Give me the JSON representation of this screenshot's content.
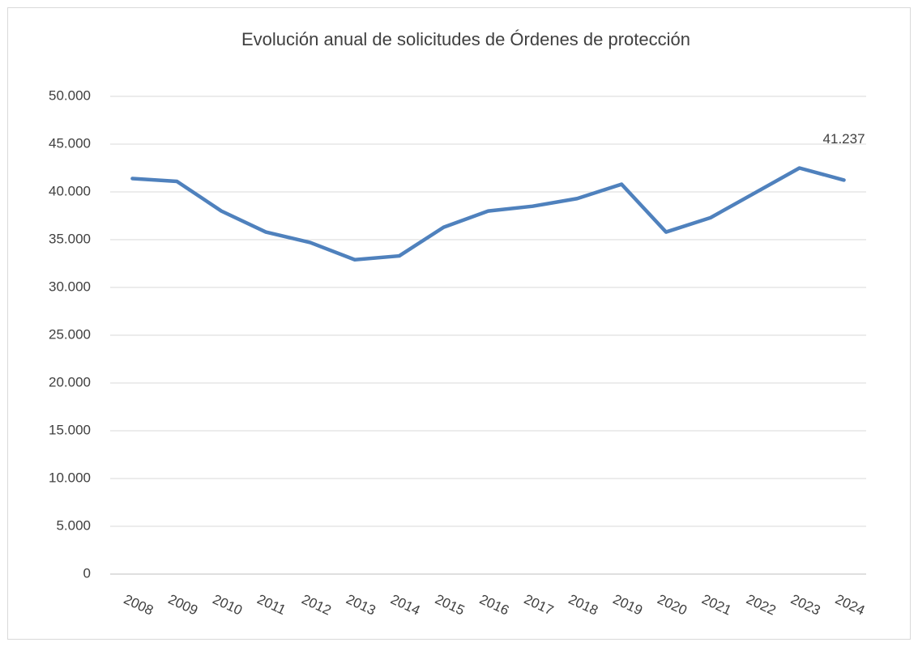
{
  "chart_data": {
    "type": "line",
    "title": "Evolución anual de solicitudes de Órdenes de protección",
    "categories": [
      "2008",
      "2009",
      "2010",
      "2011",
      "2012",
      "2013",
      "2014",
      "2015",
      "2016",
      "2017",
      "2018",
      "2019",
      "2020",
      "2021",
      "2022",
      "2023",
      "2024"
    ],
    "series": [
      {
        "name": "Solicitudes",
        "color": "#4f81bd",
        "values": [
          41400,
          41100,
          38000,
          35800,
          34700,
          32900,
          33300,
          36300,
          38000,
          38500,
          39300,
          40800,
          35800,
          37300,
          39900,
          42500,
          41237
        ],
        "value_labels": [
          null,
          null,
          null,
          null,
          null,
          null,
          null,
          null,
          null,
          null,
          null,
          null,
          null,
          null,
          null,
          null,
          "41.237"
        ]
      }
    ],
    "ylim": [
      0,
      50000
    ],
    "yticks": [
      0,
      {
        "value": 5000,
        "label": "5.000"
      },
      {
        "value": 10000,
        "label": "10.000"
      },
      {
        "value": 15000,
        "label": "15.000"
      },
      {
        "value": 20000,
        "label": "20.000"
      },
      {
        "value": 25000,
        "label": "25.000"
      },
      {
        "value": 30000,
        "label": "30.000"
      },
      {
        "value": 35000,
        "label": "35.000"
      },
      {
        "value": 40000,
        "label": "40.000"
      },
      {
        "value": 45000,
        "label": "45.000"
      },
      {
        "value": 50000,
        "label": "50.000"
      }
    ],
    "grid": true
  }
}
